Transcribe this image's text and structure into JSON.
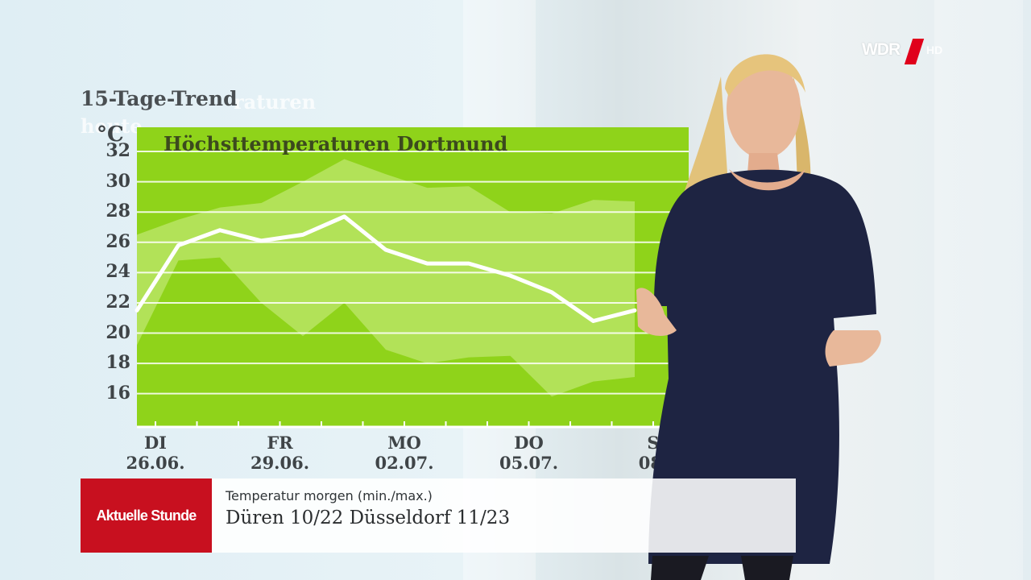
{
  "broadcast": {
    "channel_logo": "WDR",
    "quality_badge": "HD"
  },
  "forecast": {
    "section_label": "15-Tage-Trend",
    "ghost_labels": [
      "raturen",
      "heute"
    ],
    "unit": "°C",
    "y_ticks": [
      "32",
      "30",
      "28",
      "26",
      "24",
      "22",
      "20",
      "18",
      "16"
    ],
    "days": [
      {
        "weekday": "DI",
        "date": "26.06."
      },
      {
        "weekday": "FR",
        "date": "29.06."
      },
      {
        "weekday": "MO",
        "date": "02.07."
      },
      {
        "weekday": "DO",
        "date": "05.07."
      },
      {
        "weekday": "S",
        "date": "08."
      }
    ]
  },
  "chart_data": {
    "type": "area",
    "title": "Höchsttemperaturen Dortmund",
    "xlabel": "",
    "ylabel": "°C",
    "ylim": [
      13.8,
      33.6
    ],
    "x": [
      "26.06.",
      "27.06.",
      "28.06.",
      "29.06.",
      "30.06.",
      "01.07.",
      "02.07.",
      "03.07.",
      "04.07.",
      "05.07.",
      "06.07.",
      "07.07.",
      "08.07."
    ],
    "series": [
      {
        "values": [
          21.5,
          25.8,
          26.8,
          26.1,
          26.5,
          27.7,
          25.5,
          24.6,
          24.6,
          23.8,
          22.7,
          20.8,
          21.5
        ]
      },
      {
        "values": [
          26.5,
          27.5,
          28.3,
          28.6,
          30.0,
          31.5,
          30.5,
          29.6,
          29.7,
          28.0,
          27.9,
          28.8,
          28.7
        ]
      },
      {
        "values": [
          19.2,
          24.8,
          25.0,
          22.0,
          19.8,
          22.0,
          18.9,
          18.0,
          18.4,
          18.5,
          15.8,
          16.8,
          17.1
        ]
      }
    ],
    "grid": true,
    "background_color": "#8fd31a",
    "band_color": "#c4ea7a",
    "line_color": "#ffffff"
  },
  "lower_third": {
    "brand": "Aktuelle Stunde",
    "subtitle": "Temperatur morgen (min./max.)",
    "headline": "Düren 10/22   Düsseldorf 11/23"
  }
}
